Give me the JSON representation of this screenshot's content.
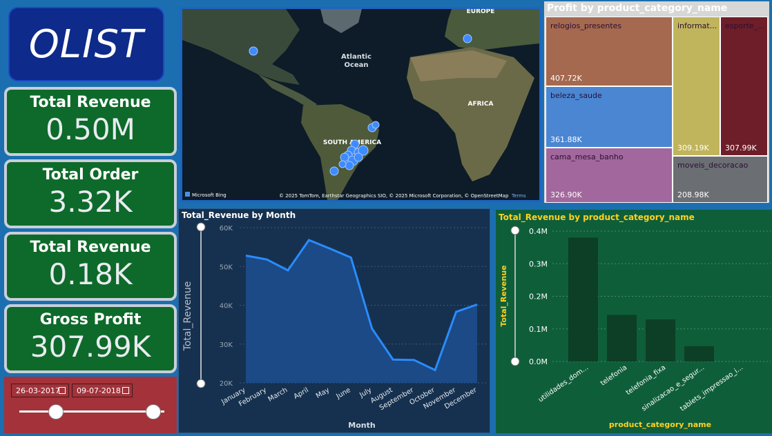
{
  "logo": {
    "text": "OLIST"
  },
  "kpis": [
    {
      "label": "Total Revenue",
      "value": "0.50M"
    },
    {
      "label": "Total Order",
      "value": "3.32K"
    },
    {
      "label": "Total Revenue",
      "value": "0.18K"
    },
    {
      "label": "Gross Profit",
      "value": "307.99K"
    }
  ],
  "slicer": {
    "start_date": "26-03-2017",
    "end_date": "09-07-2018"
  },
  "map": {
    "labels": {
      "europe": "EUROPE",
      "atlantic": "Atlantic",
      "ocean": "Ocean",
      "africa": "AFRICA",
      "south_america": "SOUTH AMERICA"
    },
    "attribution": "© 2025 TomTom, Earthstar Geographics SIO, © 2025 Microsoft Corporation, © OpenStreetMap",
    "terms": "Terms",
    "bing": "Microsoft Bing"
  },
  "treemap": {
    "title": "Profit by product_category_name",
    "tiles": [
      {
        "name": "relogios_presentes",
        "value": "407.72K",
        "color": "#a5694f"
      },
      {
        "name": "beleza_saude",
        "value": "361.88K",
        "color": "#4a86d2"
      },
      {
        "name": "cama_mesa_banho",
        "value": "326.90K",
        "color": "#a2679c"
      },
      {
        "name": "informat...",
        "value": "309.19K",
        "color": "#c0b45c"
      },
      {
        "name": "esporte_...",
        "value": "307.99K",
        "color": "#6e1e28"
      },
      {
        "name": "moveis_decoracao",
        "value": "208.98K",
        "color": "#6b6e73"
      }
    ]
  },
  "chart_data": [
    {
      "type": "area",
      "title": "Total_Revenue by Month",
      "xlabel": "Month",
      "ylabel": "Total_Revenue",
      "categories": [
        "January",
        "February",
        "March",
        "April",
        "May",
        "June",
        "July",
        "August",
        "September",
        "October",
        "November",
        "December"
      ],
      "values": [
        52800,
        51800,
        49000,
        56800,
        54600,
        52300,
        34000,
        26000,
        25900,
        23300,
        38300,
        40200
      ],
      "ylim": [
        20000,
        60000
      ],
      "yticks": [
        "20K",
        "30K",
        "40K",
        "50K",
        "60K"
      ],
      "colors": {
        "line": "#2a8cff",
        "fill": "#1b4a86"
      }
    },
    {
      "type": "bar",
      "title": "Total_Revenue by product_category_name",
      "xlabel": "product_category_name",
      "ylabel": "Total_Revenue",
      "categories": [
        "utilidades_dom...",
        "telefonia",
        "telefonia_fixa",
        "sinalizacao_e_segur...",
        "tablets_impressao_i..."
      ],
      "values": [
        0.38,
        0.143,
        0.129,
        0.047,
        0.0
      ],
      "ylim": [
        0,
        0.4
      ],
      "yticks": [
        "0.0M",
        "0.1M",
        "0.2M",
        "0.3M",
        "0.4M"
      ],
      "colors": {
        "bar": "#0d3f26",
        "label": "#ffd21f"
      }
    }
  ]
}
